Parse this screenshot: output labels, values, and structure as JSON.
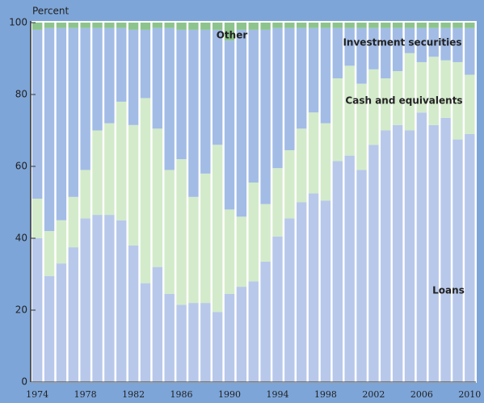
{
  "chart_data": {
    "type": "stacked_bar",
    "y_axis_label": "Percent",
    "categories": [
      "1974",
      null,
      null,
      null,
      "1978",
      null,
      null,
      null,
      "1982",
      null,
      null,
      null,
      "1986",
      null,
      null,
      null,
      "1990",
      null,
      null,
      null,
      "1994",
      null,
      null,
      null,
      "1998",
      null,
      null,
      null,
      "2002",
      null,
      null,
      null,
      "2006",
      null,
      null,
      null,
      "2010"
    ],
    "series": [
      {
        "name": "Loans",
        "color": "#b8c8ea",
        "values": [
          40,
          29.5,
          33,
          37.5,
          45.5,
          46.5,
          46.5,
          45,
          38,
          27.5,
          32,
          24.5,
          21.5,
          22,
          22,
          19.5,
          24.5,
          26.5,
          28,
          33.5,
          40.5,
          45.5,
          50,
          52.5,
          50.5,
          61.5,
          63,
          59,
          66,
          70,
          71.5,
          70,
          75,
          71.5,
          73.5,
          67.5,
          69
        ]
      },
      {
        "name": "Cash and equivalents",
        "color": "#d3ebca",
        "values": [
          11,
          12.5,
          12,
          14,
          13.5,
          23.5,
          25.5,
          33,
          33.5,
          51.5,
          38.5,
          34.5,
          40.5,
          29.5,
          36,
          46.5,
          23.5,
          19.5,
          27.5,
          16,
          19,
          19,
          20.5,
          22.5,
          21.5,
          23,
          25,
          24,
          21,
          14.5,
          15,
          21.5,
          14,
          19,
          16,
          21.5,
          16.5
        ]
      },
      {
        "name": "Investment securities",
        "color": "#a2bce6",
        "values": [
          47,
          56.5,
          53.5,
          47,
          39.5,
          28.5,
          26.5,
          20.5,
          26.5,
          19,
          28,
          39.5,
          36,
          46.5,
          40,
          32,
          47,
          52,
          42.5,
          48.5,
          39,
          34,
          28,
          23.5,
          26.5,
          14,
          10.5,
          15.5,
          11.5,
          14,
          12,
          7,
          9.5,
          8,
          9,
          9.5,
          13
        ]
      },
      {
        "name": "Other",
        "color": "#8dc48d",
        "values": [
          2,
          1.5,
          1.5,
          1.5,
          1.5,
          1.5,
          1.5,
          1.5,
          2,
          2,
          1.5,
          1.5,
          2,
          2,
          2,
          2,
          5,
          2,
          2,
          2,
          1.5,
          1.5,
          1.5,
          1.5,
          1.5,
          1.5,
          1.5,
          1.5,
          1.5,
          1.5,
          1.5,
          1.5,
          1.5,
          1.5,
          1.5,
          1.5,
          1.5
        ]
      }
    ],
    "ylim": [
      0,
      100
    ],
    "yticks": [
      0,
      20,
      40,
      60,
      80,
      100
    ]
  }
}
